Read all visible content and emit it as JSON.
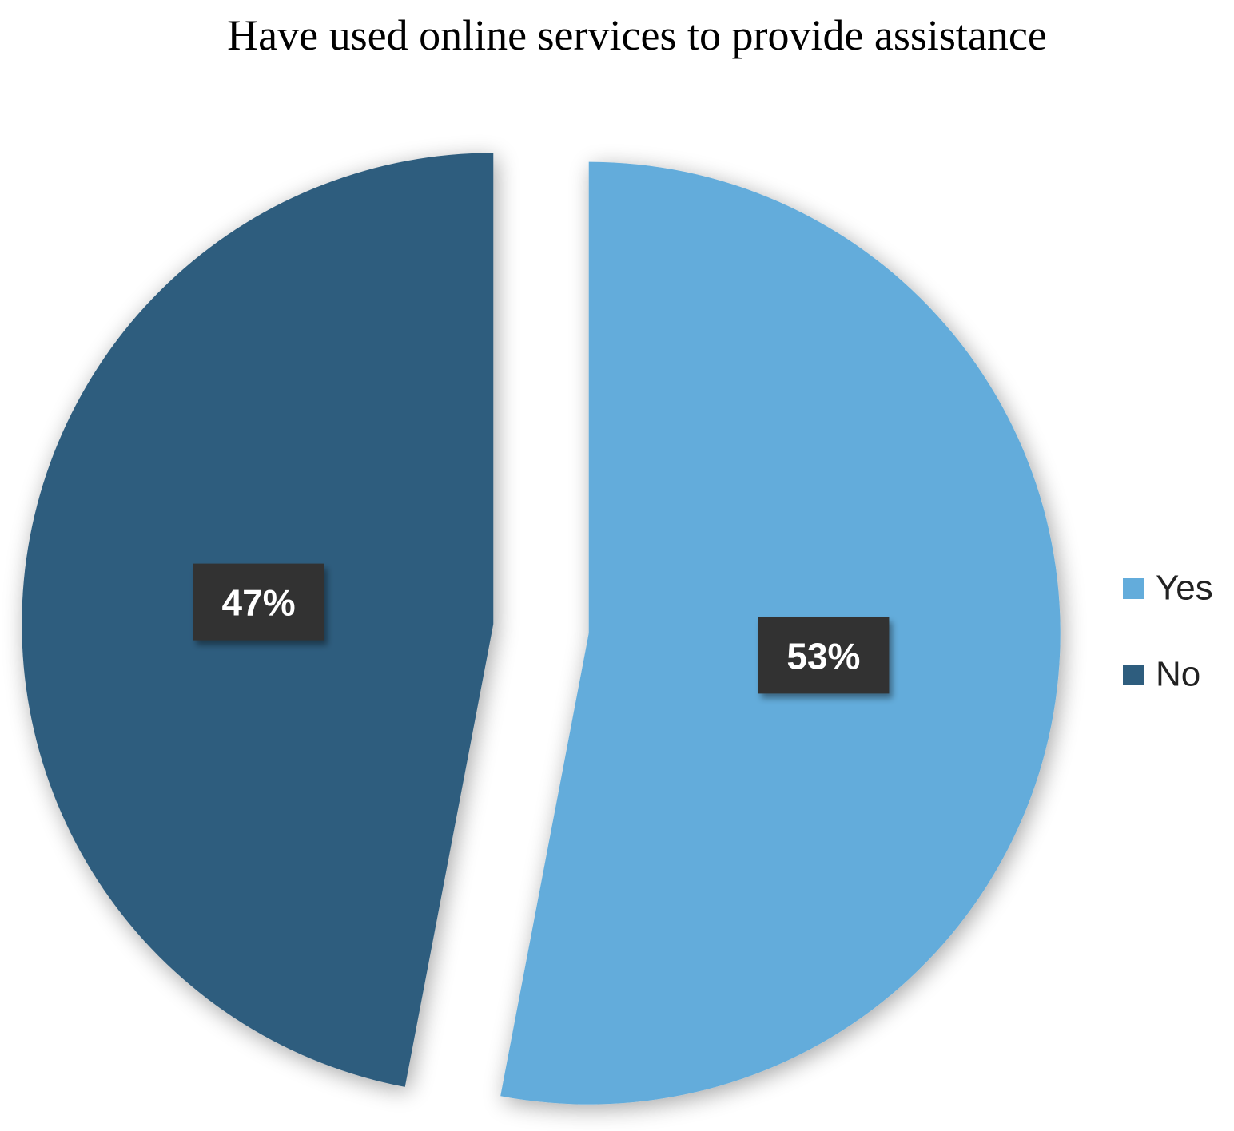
{
  "chart_data": {
    "type": "pie",
    "title": "Have used online services to provide assistance",
    "categories": [
      "Yes",
      "No"
    ],
    "values": [
      53,
      47
    ],
    "value_labels": [
      "53%",
      "47%"
    ],
    "colors": [
      "#63acdb",
      "#2e5d7e"
    ],
    "legend": "right"
  }
}
